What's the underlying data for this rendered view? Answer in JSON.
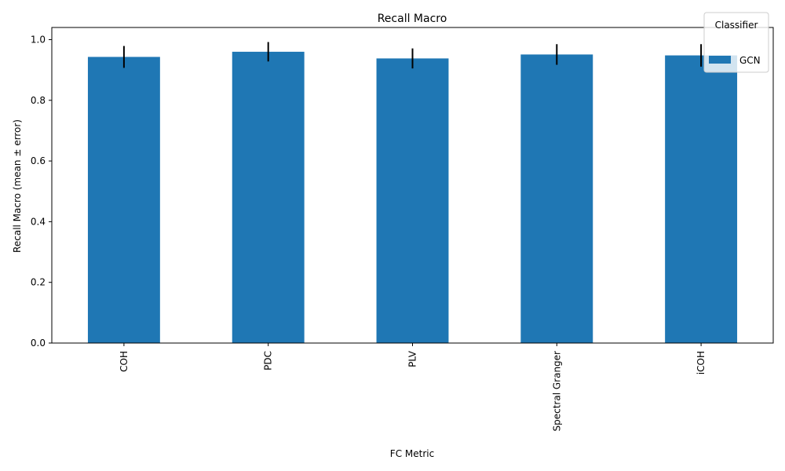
{
  "chart_data": {
    "type": "bar",
    "title": "Recall Macro",
    "xlabel": "FC Metric",
    "ylabel": "Recall Macro (mean ± error)",
    "categories": [
      "COH",
      "PDC",
      "PLV",
      "Spectral Granger",
      "iCOH"
    ],
    "series": [
      {
        "name": "GCN",
        "values": [
          0.943,
          0.96,
          0.938,
          0.951,
          0.948
        ],
        "errors": [
          0.036,
          0.032,
          0.033,
          0.034,
          0.037
        ]
      }
    ],
    "ylim": [
      0,
      1.04
    ],
    "yticks": [
      "0.0",
      "0.2",
      "0.4",
      "0.6",
      "0.8",
      "1.0"
    ],
    "ytick_values": [
      0.0,
      0.2,
      0.4,
      0.6,
      0.8,
      1.0
    ],
    "grid": false,
    "legend": {
      "title": "Classifier",
      "placement": "top-right"
    },
    "colors": {
      "bar": "#1f77b4",
      "error": "#000000"
    }
  }
}
